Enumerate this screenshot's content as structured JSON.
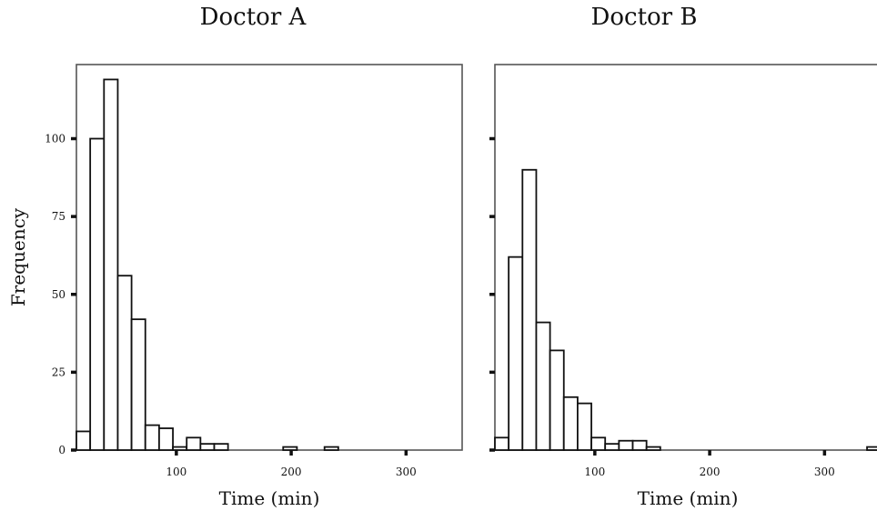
{
  "chart_data": [
    {
      "type": "bar",
      "title": "Doctor A",
      "xlabel": "Time (min)",
      "ylabel": "Frequency",
      "xlim": [
        13,
        350
      ],
      "ylim": [
        0,
        120
      ],
      "xticks": [
        100,
        200,
        300
      ],
      "yticks": [
        0,
        25,
        50,
        75,
        100
      ],
      "bin_width": 12,
      "bins": [
        {
          "x0": 13,
          "count": 6
        },
        {
          "x0": 25,
          "count": 100
        },
        {
          "x0": 37,
          "count": 119
        },
        {
          "x0": 49,
          "count": 56
        },
        {
          "x0": 61,
          "count": 42
        },
        {
          "x0": 73,
          "count": 8
        },
        {
          "x0": 85,
          "count": 7
        },
        {
          "x0": 97,
          "count": 1
        },
        {
          "x0": 109,
          "count": 4
        },
        {
          "x0": 121,
          "count": 2
        },
        {
          "x0": 133,
          "count": 2
        },
        {
          "x0": 193,
          "count": 1
        },
        {
          "x0": 229,
          "count": 1
        }
      ]
    },
    {
      "type": "bar",
      "title": "Doctor B",
      "xlabel": "Time (min)",
      "ylabel": "",
      "xlim": [
        13,
        350
      ],
      "ylim": [
        0,
        120
      ],
      "xticks": [
        100,
        200,
        300
      ],
      "yticks": [
        0,
        25,
        50,
        75,
        100
      ],
      "bin_width": 12,
      "bins": [
        {
          "x0": 13,
          "count": 4
        },
        {
          "x0": 25,
          "count": 62
        },
        {
          "x0": 37,
          "count": 90
        },
        {
          "x0": 49,
          "count": 41
        },
        {
          "x0": 61,
          "count": 32
        },
        {
          "x0": 73,
          "count": 17
        },
        {
          "x0": 85,
          "count": 15
        },
        {
          "x0": 97,
          "count": 4
        },
        {
          "x0": 109,
          "count": 2
        },
        {
          "x0": 121,
          "count": 3
        },
        {
          "x0": 133,
          "count": 3
        },
        {
          "x0": 145,
          "count": 1
        },
        {
          "x0": 337,
          "count": 1
        }
      ]
    }
  ]
}
